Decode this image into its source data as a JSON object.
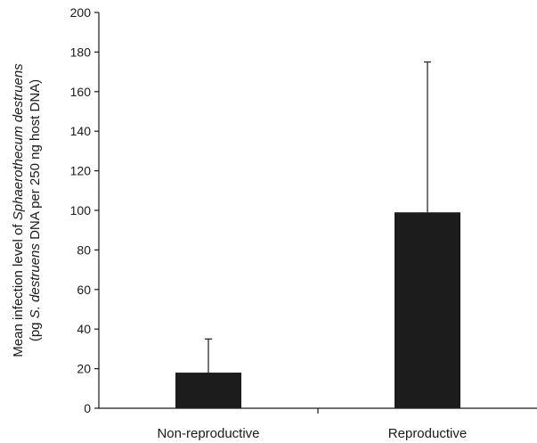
{
  "chart_data": {
    "type": "bar",
    "title": "",
    "xlabel": "",
    "ylabel": {
      "line1_prefix": "Mean infection level of ",
      "line1_italic": "Sphaerothecum destruens",
      "line2_prefix": "(pg ",
      "line2_italic": "S. destruens",
      "line2_suffix": " DNA per 250 ng host DNA)"
    },
    "categories": [
      "Non-reproductive",
      "Reproductive"
    ],
    "values": [
      18,
      99
    ],
    "error_upper": [
      35,
      175
    ],
    "ylim": [
      0,
      200
    ],
    "yticks": [
      0,
      20,
      40,
      60,
      80,
      100,
      120,
      140,
      160,
      180,
      200
    ],
    "grid": false,
    "bar_color": "#1c1c1c"
  }
}
